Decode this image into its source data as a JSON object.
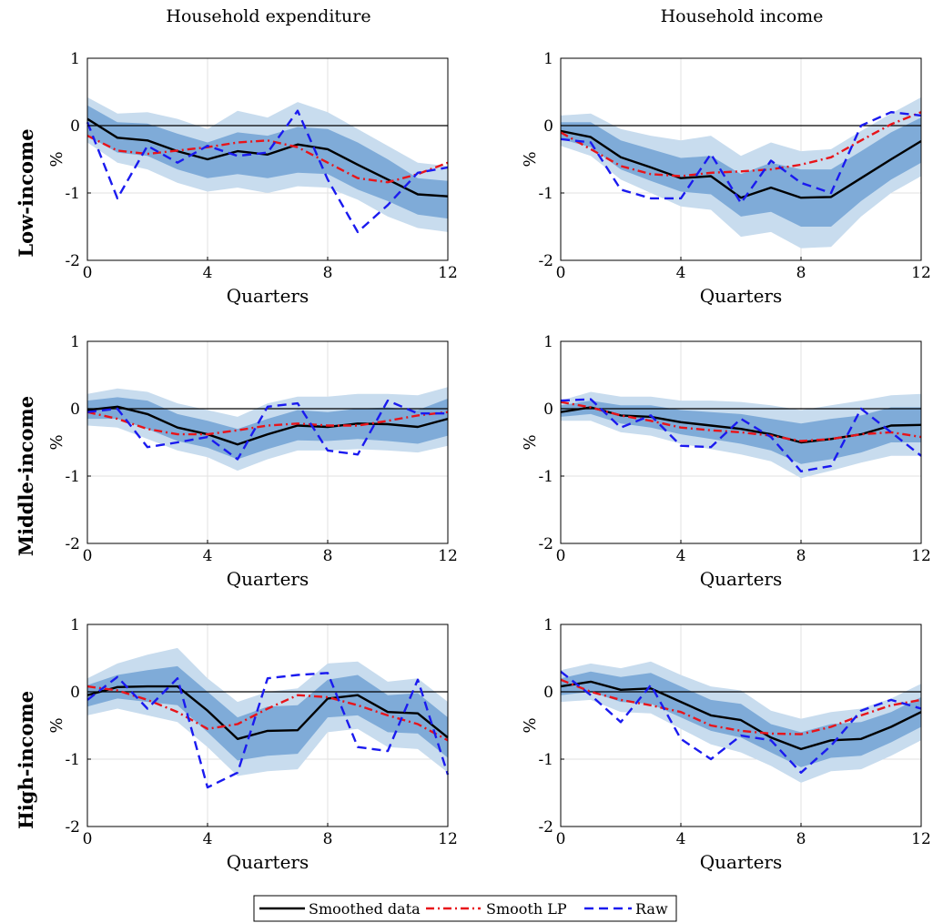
{
  "column_titles": [
    "Household expenditure",
    "Household income"
  ],
  "row_labels": [
    "Low-income",
    "Middle-income",
    "High-income"
  ],
  "legend": [
    "Smoothed data",
    "Smooth LP",
    "Raw"
  ],
  "colors": {
    "smoothed": "#000000",
    "smooth_lp": "#e8141a",
    "raw": "#1a1aef",
    "band_outer": "#c8dcee",
    "band_inner": "#7fabd8",
    "zero_line": "#000000",
    "grid": "#e2e2e2"
  },
  "chart_data": [
    {
      "type": "line",
      "row": "Low-income",
      "column": "Household expenditure",
      "xlabel": "Quarters",
      "ylabel": "%",
      "xlim": [
        0,
        12
      ],
      "ylim": [
        -2,
        1
      ],
      "xticks": [
        0,
        4,
        8,
        12
      ],
      "yticks": [
        -2,
        -1,
        0,
        1
      ],
      "grid": true,
      "x": [
        0,
        1,
        2,
        3,
        4,
        5,
        6,
        7,
        8,
        9,
        10,
        11,
        12
      ],
      "series": [
        {
          "name": "Smoothed data",
          "values": [
            0.1,
            -0.18,
            -0.22,
            -0.38,
            -0.5,
            -0.38,
            -0.43,
            -0.28,
            -0.35,
            -0.58,
            -0.8,
            -1.02,
            -1.05
          ]
        },
        {
          "name": "Smooth LP",
          "values": [
            -0.15,
            -0.37,
            -0.42,
            -0.37,
            -0.32,
            -0.25,
            -0.22,
            -0.32,
            -0.55,
            -0.78,
            -0.84,
            -0.72,
            -0.55
          ]
        },
        {
          "name": "Raw",
          "values": [
            0.05,
            -1.08,
            -0.3,
            -0.55,
            -0.3,
            -0.45,
            -0.4,
            0.22,
            -0.8,
            -1.58,
            -1.18,
            -0.7,
            -0.62
          ]
        }
      ],
      "bands": {
        "outer_lower": [
          -0.25,
          -0.55,
          -0.65,
          -0.85,
          -0.98,
          -0.92,
          -1.0,
          -0.9,
          -0.92,
          -1.1,
          -1.35,
          -1.52,
          -1.58
        ],
        "outer_upper": [
          0.42,
          0.18,
          0.2,
          0.1,
          -0.05,
          0.22,
          0.12,
          0.35,
          0.2,
          -0.05,
          -0.3,
          -0.55,
          -0.6
        ],
        "inner_lower": [
          -0.15,
          -0.4,
          -0.45,
          -0.65,
          -0.78,
          -0.72,
          -0.78,
          -0.7,
          -0.72,
          -0.95,
          -1.12,
          -1.32,
          -1.38
        ],
        "inner_upper": [
          0.3,
          0.05,
          0.03,
          -0.12,
          -0.25,
          -0.1,
          -0.15,
          -0.02,
          -0.05,
          -0.25,
          -0.5,
          -0.78,
          -0.82
        ]
      }
    },
    {
      "type": "line",
      "row": "Low-income",
      "column": "Household income",
      "xlabel": "Quarters",
      "ylabel": "%",
      "xlim": [
        0,
        12
      ],
      "ylim": [
        -2,
        1
      ],
      "xticks": [
        0,
        4,
        8,
        12
      ],
      "yticks": [
        -2,
        -1,
        0,
        1
      ],
      "grid": true,
      "x": [
        0,
        1,
        2,
        3,
        4,
        5,
        6,
        7,
        8,
        9,
        10,
        11,
        12
      ],
      "series": [
        {
          "name": "Smoothed data",
          "values": [
            -0.08,
            -0.17,
            -0.47,
            -0.62,
            -0.78,
            -0.75,
            -1.07,
            -0.92,
            -1.07,
            -1.06,
            -0.78,
            -0.5,
            -0.23
          ]
        },
        {
          "name": "Smooth LP",
          "values": [
            -0.1,
            -0.35,
            -0.6,
            -0.72,
            -0.75,
            -0.7,
            -0.68,
            -0.65,
            -0.58,
            -0.47,
            -0.22,
            0.02,
            0.2
          ]
        },
        {
          "name": "Raw",
          "values": [
            -0.2,
            -0.25,
            -0.95,
            -1.08,
            -1.08,
            -0.42,
            -1.15,
            -0.52,
            -0.85,
            -1.0,
            0.0,
            0.2,
            0.15
          ]
        }
      ],
      "bands": {
        "outer_lower": [
          -0.3,
          -0.45,
          -0.8,
          -1.0,
          -1.2,
          -1.25,
          -1.65,
          -1.58,
          -1.82,
          -1.8,
          -1.35,
          -1.0,
          -0.75
        ],
        "outer_upper": [
          0.15,
          0.18,
          -0.05,
          -0.15,
          -0.22,
          -0.15,
          -0.45,
          -0.25,
          -0.38,
          -0.35,
          -0.08,
          0.18,
          0.42
        ],
        "inner_lower": [
          -0.2,
          -0.32,
          -0.65,
          -0.82,
          -0.98,
          -1.02,
          -1.35,
          -1.28,
          -1.5,
          -1.5,
          -1.12,
          -0.8,
          -0.55
        ],
        "inner_upper": [
          0.05,
          0.05,
          -0.22,
          -0.35,
          -0.48,
          -0.45,
          -0.72,
          -0.55,
          -0.65,
          -0.65,
          -0.38,
          -0.1,
          0.12
        ]
      }
    },
    {
      "type": "line",
      "row": "Middle-income",
      "column": "Household expenditure",
      "xlabel": "Quarters",
      "ylabel": "%",
      "xlim": [
        0,
        12
      ],
      "ylim": [
        -2,
        1
      ],
      "xticks": [
        0,
        4,
        8,
        12
      ],
      "yticks": [
        -2,
        -1,
        0,
        1
      ],
      "grid": true,
      "x": [
        0,
        1,
        2,
        3,
        4,
        5,
        6,
        7,
        8,
        9,
        10,
        11,
        12
      ],
      "series": [
        {
          "name": "Smoothed data",
          "values": [
            -0.02,
            0.03,
            -0.08,
            -0.28,
            -0.38,
            -0.53,
            -0.38,
            -0.25,
            -0.27,
            -0.22,
            -0.23,
            -0.27,
            -0.15
          ]
        },
        {
          "name": "Smooth LP",
          "values": [
            -0.05,
            -0.15,
            -0.3,
            -0.38,
            -0.38,
            -0.32,
            -0.25,
            -0.22,
            -0.25,
            -0.25,
            -0.18,
            -0.1,
            -0.05
          ]
        },
        {
          "name": "Raw",
          "values": [
            -0.05,
            0.0,
            -0.57,
            -0.5,
            -0.42,
            -0.75,
            0.03,
            0.08,
            -0.62,
            -0.68,
            0.12,
            -0.07,
            -0.07
          ]
        }
      ],
      "bands": {
        "outer_lower": [
          -0.25,
          -0.28,
          -0.45,
          -0.62,
          -0.72,
          -0.92,
          -0.75,
          -0.62,
          -0.62,
          -0.6,
          -0.62,
          -0.65,
          -0.55
        ],
        "outer_upper": [
          0.22,
          0.3,
          0.25,
          0.08,
          -0.02,
          -0.12,
          0.08,
          0.18,
          0.18,
          0.22,
          0.22,
          0.2,
          0.32
        ],
        "inner_lower": [
          -0.15,
          -0.15,
          -0.3,
          -0.48,
          -0.58,
          -0.75,
          -0.6,
          -0.47,
          -0.48,
          -0.45,
          -0.48,
          -0.52,
          -0.4
        ],
        "inner_upper": [
          0.12,
          0.17,
          0.12,
          -0.08,
          -0.18,
          -0.3,
          -0.15,
          -0.02,
          -0.05,
          0.0,
          0.02,
          -0.02,
          0.15
        ]
      }
    },
    {
      "type": "line",
      "row": "Middle-income",
      "column": "Household income",
      "xlabel": "Quarters",
      "ylabel": "%",
      "xlim": [
        0,
        12
      ],
      "ylim": [
        -2,
        1
      ],
      "xticks": [
        0,
        4,
        8,
        12
      ],
      "yticks": [
        -2,
        -1,
        0,
        1
      ],
      "grid": true,
      "x": [
        0,
        1,
        2,
        3,
        4,
        5,
        6,
        7,
        8,
        9,
        10,
        11,
        12
      ],
      "series": [
        {
          "name": "Smoothed data",
          "values": [
            -0.05,
            0.02,
            -0.1,
            -0.12,
            -0.2,
            -0.25,
            -0.3,
            -0.38,
            -0.5,
            -0.45,
            -0.38,
            -0.25,
            -0.24
          ]
        },
        {
          "name": "Smooth LP",
          "values": [
            0.1,
            0.02,
            -0.1,
            -0.18,
            -0.28,
            -0.32,
            -0.35,
            -0.4,
            -0.48,
            -0.45,
            -0.38,
            -0.35,
            -0.42
          ]
        },
        {
          "name": "Raw",
          "values": [
            0.12,
            0.14,
            -0.28,
            -0.1,
            -0.55,
            -0.57,
            -0.15,
            -0.42,
            -0.93,
            -0.85,
            0.0,
            -0.35,
            -0.7
          ]
        }
      ],
      "bands": {
        "outer_lower": [
          -0.18,
          -0.18,
          -0.35,
          -0.4,
          -0.52,
          -0.6,
          -0.68,
          -0.78,
          -1.03,
          -0.92,
          -0.8,
          -0.7,
          -0.7
        ],
        "outer_upper": [
          0.12,
          0.25,
          0.18,
          0.18,
          0.12,
          0.12,
          0.1,
          0.05,
          -0.02,
          0.05,
          0.12,
          0.2,
          0.22
        ],
        "inner_lower": [
          -0.12,
          -0.08,
          -0.22,
          -0.28,
          -0.38,
          -0.45,
          -0.52,
          -0.62,
          -0.82,
          -0.75,
          -0.65,
          -0.5,
          -0.5
        ],
        "inner_upper": [
          0.05,
          0.12,
          0.05,
          0.05,
          -0.02,
          -0.05,
          -0.08,
          -0.15,
          -0.22,
          -0.15,
          -0.1,
          0.02,
          0.02
        ]
      }
    },
    {
      "type": "line",
      "row": "High-income",
      "column": "Household expenditure",
      "xlabel": "Quarters",
      "ylabel": "%",
      "xlim": [
        0,
        12
      ],
      "ylim": [
        -2,
        1
      ],
      "xticks": [
        0,
        4,
        8,
        12
      ],
      "yticks": [
        -2,
        -1,
        0,
        1
      ],
      "grid": true,
      "x": [
        0,
        1,
        2,
        3,
        4,
        5,
        6,
        7,
        8,
        9,
        10,
        11,
        12
      ],
      "series": [
        {
          "name": "Smoothed data",
          "values": [
            -0.05,
            0.07,
            0.08,
            0.08,
            -0.28,
            -0.7,
            -0.58,
            -0.57,
            -0.1,
            -0.05,
            -0.3,
            -0.32,
            -0.68
          ]
        },
        {
          "name": "Smooth LP",
          "values": [
            0.08,
            0.02,
            -0.12,
            -0.3,
            -0.55,
            -0.48,
            -0.25,
            -0.05,
            -0.08,
            -0.2,
            -0.35,
            -0.48,
            -0.72
          ]
        },
        {
          "name": "Raw",
          "values": [
            -0.12,
            0.22,
            -0.25,
            0.2,
            -1.42,
            -1.2,
            0.2,
            0.25,
            0.28,
            -0.82,
            -0.88,
            0.18,
            -1.23
          ]
        }
      ],
      "bands": {
        "outer_lower": [
          -0.35,
          -0.25,
          -0.35,
          -0.45,
          -0.82,
          -1.25,
          -1.18,
          -1.15,
          -0.6,
          -0.55,
          -0.82,
          -0.85,
          -1.2
        ],
        "outer_upper": [
          0.2,
          0.42,
          0.55,
          0.65,
          0.2,
          -0.15,
          0.0,
          0.05,
          0.42,
          0.45,
          0.15,
          0.2,
          -0.15
        ],
        "inner_lower": [
          -0.22,
          -0.1,
          -0.15,
          -0.2,
          -0.6,
          -1.02,
          -0.95,
          -0.92,
          -0.38,
          -0.35,
          -0.6,
          -0.62,
          -0.98
        ],
        "inner_upper": [
          0.1,
          0.25,
          0.32,
          0.38,
          0.0,
          -0.38,
          -0.22,
          -0.2,
          0.18,
          0.25,
          -0.05,
          -0.02,
          -0.38
        ]
      }
    },
    {
      "type": "line",
      "row": "High-income",
      "column": "Household income",
      "xlabel": "Quarters",
      "ylabel": "%",
      "xlim": [
        0,
        12
      ],
      "ylim": [
        -2,
        1
      ],
      "xticks": [
        0,
        4,
        8,
        12
      ],
      "yticks": [
        -2,
        -1,
        0,
        1
      ],
      "grid": true,
      "x": [
        0,
        1,
        2,
        3,
        4,
        5,
        6,
        7,
        8,
        9,
        10,
        11,
        12
      ],
      "series": [
        {
          "name": "Smoothed data",
          "values": [
            0.08,
            0.15,
            0.03,
            0.05,
            -0.15,
            -0.35,
            -0.42,
            -0.68,
            -0.85,
            -0.72,
            -0.7,
            -0.52,
            -0.3
          ]
        },
        {
          "name": "Smooth LP",
          "values": [
            0.18,
            0.0,
            -0.12,
            -0.2,
            -0.3,
            -0.5,
            -0.58,
            -0.62,
            -0.63,
            -0.52,
            -0.35,
            -0.2,
            -0.12
          ]
        },
        {
          "name": "Raw",
          "values": [
            0.3,
            -0.05,
            -0.45,
            0.1,
            -0.7,
            -1.0,
            -0.65,
            -0.72,
            -1.2,
            -0.8,
            -0.28,
            -0.12,
            -0.25
          ]
        }
      ],
      "bands": {
        "outer_lower": [
          -0.15,
          -0.12,
          -0.3,
          -0.32,
          -0.55,
          -0.78,
          -0.9,
          -1.1,
          -1.35,
          -1.18,
          -1.15,
          -0.95,
          -0.72
        ],
        "outer_upper": [
          0.32,
          0.42,
          0.35,
          0.45,
          0.25,
          0.08,
          0.02,
          -0.28,
          -0.4,
          -0.3,
          -0.25,
          -0.1,
          0.12
        ],
        "inner_lower": [
          -0.05,
          0.0,
          -0.15,
          -0.18,
          -0.38,
          -0.58,
          -0.68,
          -0.9,
          -1.12,
          -0.98,
          -0.95,
          -0.75,
          -0.52
        ],
        "inner_upper": [
          0.2,
          0.3,
          0.22,
          0.28,
          0.08,
          -0.12,
          -0.18,
          -0.48,
          -0.6,
          -0.48,
          -0.45,
          -0.3,
          -0.08
        ]
      }
    }
  ]
}
